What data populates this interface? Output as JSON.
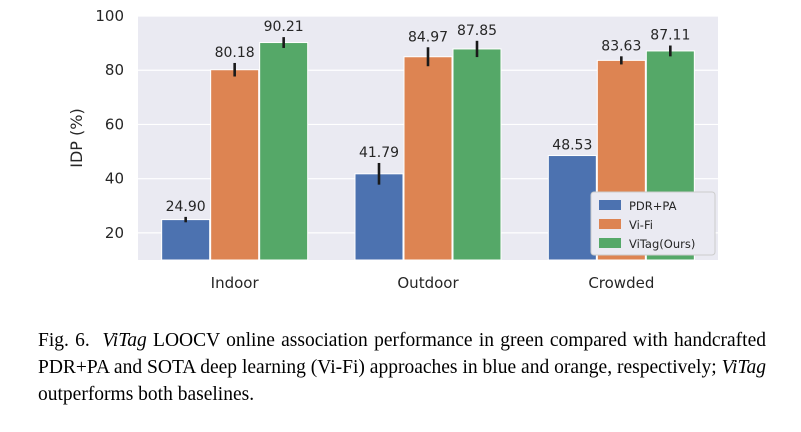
{
  "chart_data": {
    "type": "bar",
    "categories": [
      "Indoor",
      "Outdoor",
      "Crowded"
    ],
    "series": [
      {
        "name": "PDR+PA",
        "color": "#4c72b0",
        "values": [
          24.9,
          41.79,
          48.53
        ],
        "errors": [
          1.0,
          4.0,
          0.0
        ],
        "labels": [
          "24.90",
          "41.79",
          "48.53"
        ]
      },
      {
        "name": "Vi-Fi",
        "color": "#dd8452",
        "values": [
          80.18,
          84.97,
          83.63
        ],
        "errors": [
          2.5,
          3.5,
          1.5
        ],
        "labels": [
          "80.18",
          "84.97",
          "83.63"
        ]
      },
      {
        "name": "ViTag(Ours)",
        "color": "#55a868",
        "values": [
          90.21,
          87.85,
          87.11
        ],
        "errors": [
          2.0,
          3.0,
          2.0
        ],
        "labels": [
          "90.21",
          "87.85",
          "87.11"
        ]
      }
    ],
    "ylabel": "IDP (%)",
    "ylim": [
      10,
      100
    ],
    "yticks": [
      20,
      40,
      60,
      80,
      100
    ],
    "grid": true,
    "legend": "bottom-right"
  },
  "caption": {
    "prefix": "Fig. 6.",
    "parts": [
      {
        "text": "ViTag",
        "italic": true
      },
      {
        "text": " LOOCV online association performance in green compared with handcrafted PDR+PA and SOTA deep learning (Vi-Fi) approaches in blue and orange, respectively; ",
        "italic": false
      },
      {
        "text": "ViTag",
        "italic": true
      },
      {
        "text": " outperforms both baselines.",
        "italic": false
      }
    ]
  }
}
